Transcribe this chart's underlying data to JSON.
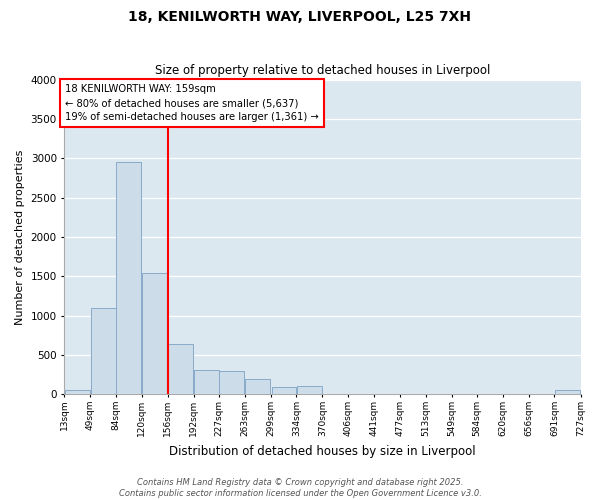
{
  "title_line1": "18, KENILWORTH WAY, LIVERPOOL, L25 7XH",
  "title_line2": "Size of property relative to detached houses in Liverpool",
  "xlabel": "Distribution of detached houses by size in Liverpool",
  "ylabel": "Number of detached properties",
  "bar_color": "#ccdce8",
  "bar_edgecolor": "#88aac8",
  "background_color": "#dce8f0",
  "grid_color": "#ffffff",
  "vline_color": "red",
  "vline_x_idx": 4,
  "annotation_line1": "18 KENILWORTH WAY: 159sqm",
  "annotation_line2": "← 80% of detached houses are smaller (5,637)",
  "annotation_line3": "19% of semi-detached houses are larger (1,361) →",
  "footnote": "Contains HM Land Registry data © Crown copyright and database right 2025.\nContains public sector information licensed under the Open Government Licence v3.0.",
  "bins_left": [
    13,
    49,
    84,
    120,
    156,
    192,
    227,
    263,
    299,
    334,
    370,
    406,
    441,
    477,
    513,
    549,
    584,
    620,
    656,
    691
  ],
  "bin_width": 35,
  "counts": [
    55,
    1100,
    2950,
    1540,
    640,
    310,
    295,
    195,
    98,
    100,
    0,
    0,
    0,
    0,
    0,
    0,
    0,
    0,
    0,
    55
  ],
  "ylim": [
    0,
    4000
  ],
  "yticks": [
    0,
    500,
    1000,
    1500,
    2000,
    2500,
    3000,
    3500,
    4000
  ],
  "xlim_left": 13,
  "xlim_right": 727,
  "fig_bg": "#ffffff"
}
